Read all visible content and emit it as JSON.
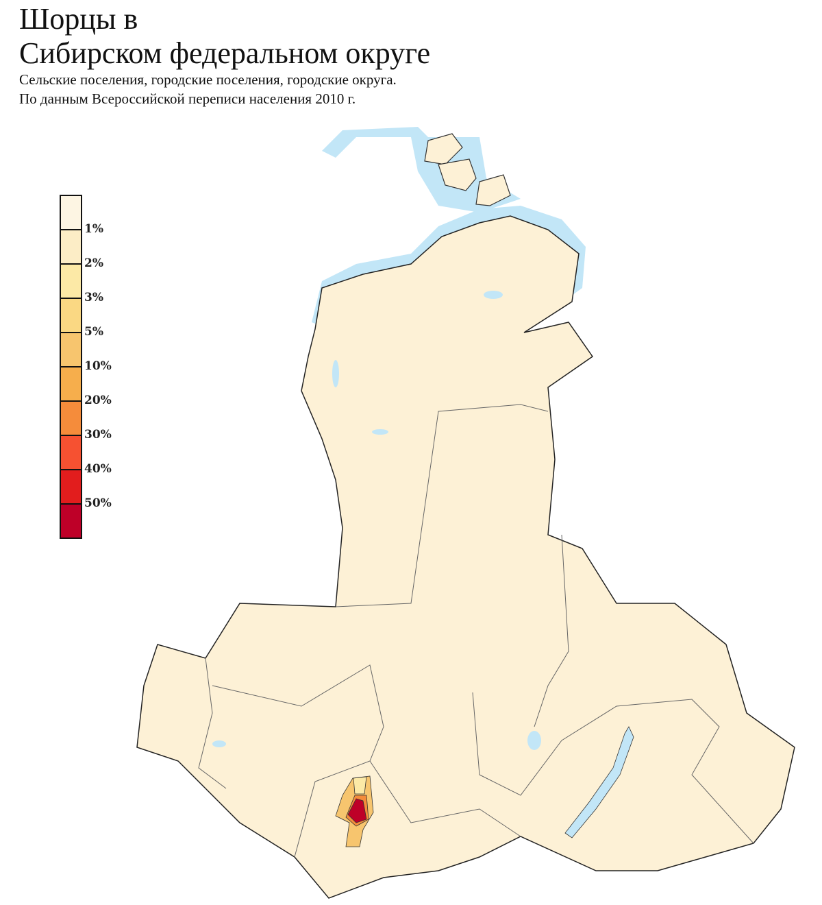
{
  "title_line1": "Шорцы в",
  "title_line2": "Сибирском федеральном округе",
  "subtitle_line1": "Сельские поселения, городские поселения, городские округа.",
  "subtitle_line2": "По данным Всероссийской переписи населения 2010 г.",
  "legend": {
    "colors": [
      "#fdf5e3",
      "#fcedc6",
      "#fce9a6",
      "#fad883",
      "#f7c56e",
      "#f6ae4c",
      "#f58c3b",
      "#f65131",
      "#e21d1d",
      "#be0028"
    ],
    "labels": [
      "1%",
      "2%",
      "3%",
      "5%",
      "10%",
      "20%",
      "30%",
      "40%",
      "50%"
    ]
  },
  "map_colors": {
    "land": "#fdf1d6",
    "water": "#c2e6f7",
    "border": "#333333",
    "background": "#ffffff"
  }
}
